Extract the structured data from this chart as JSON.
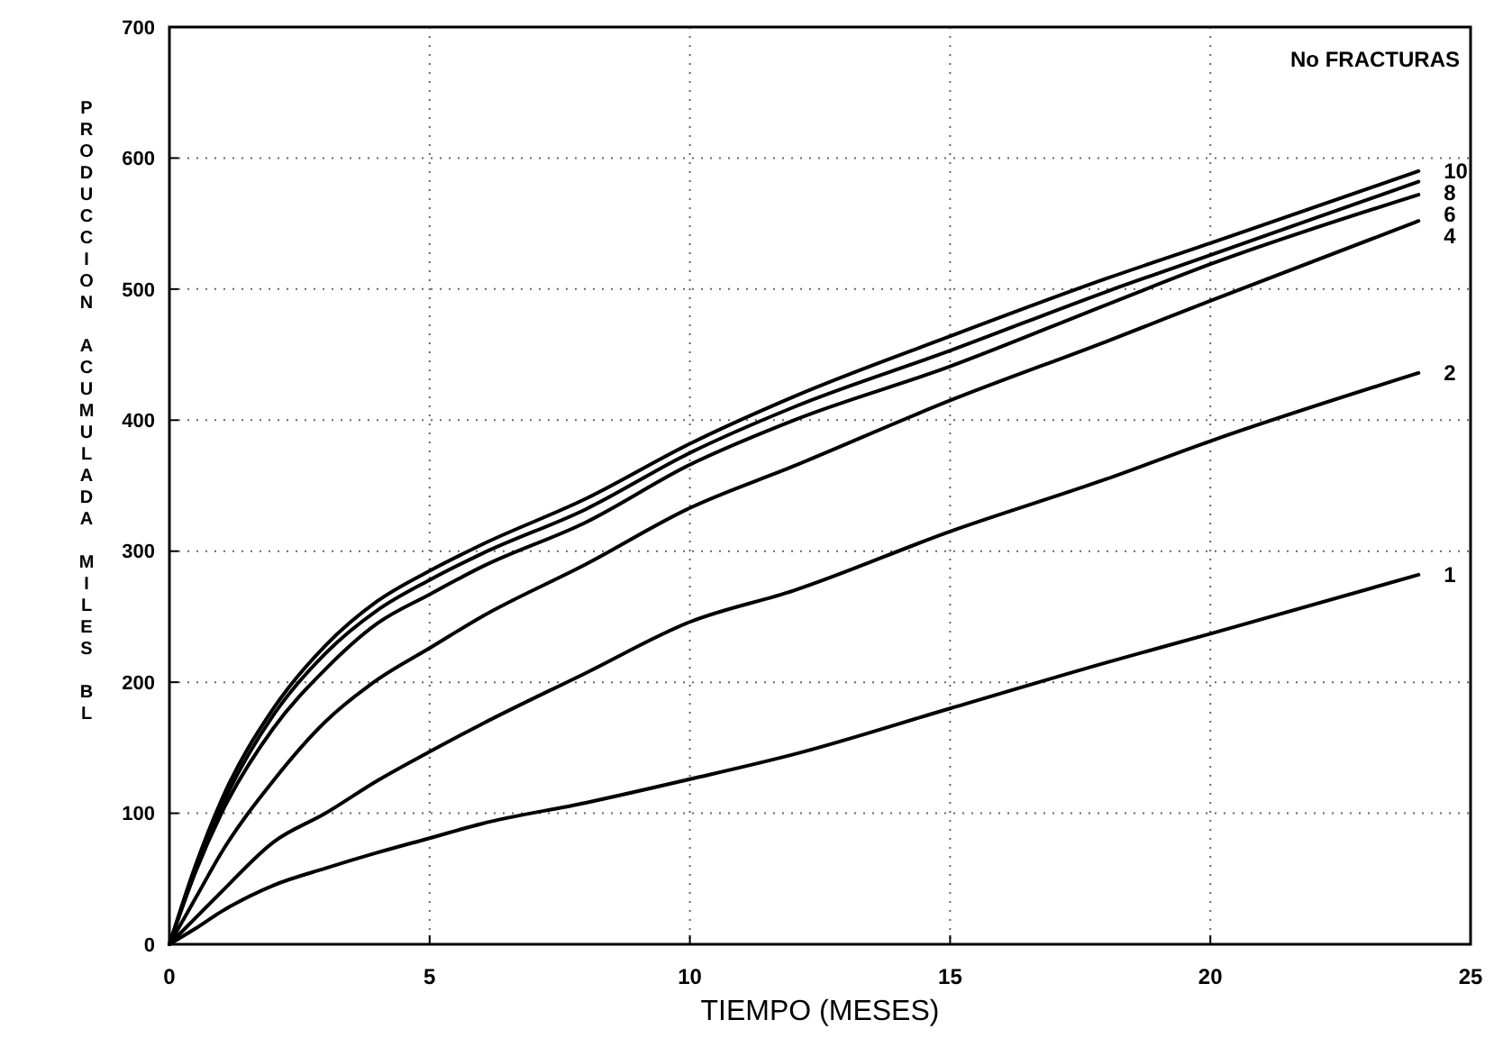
{
  "chart_data": {
    "type": "line",
    "xlabel": "TIEMPO (MESES)",
    "ylabel": "PRODUCCION ACUMULADA MILES BL",
    "legend_title": "No FRACTURAS",
    "x": [
      0,
      0.5,
      1,
      2,
      3,
      4,
      5,
      6,
      8,
      10,
      12,
      15,
      18,
      20,
      24
    ],
    "series": [
      {
        "name": "10",
        "color": "#000000",
        "values": [
          0,
          60,
          110,
          180,
          228,
          262,
          285,
          305,
          340,
          382,
          418,
          464,
          508,
          535,
          590
        ]
      },
      {
        "name": "8",
        "color": "#000000",
        "values": [
          0,
          57,
          105,
          175,
          222,
          255,
          278,
          298,
          332,
          375,
          410,
          453,
          498,
          526,
          582
        ]
      },
      {
        "name": "6",
        "color": "#000000",
        "values": [
          0,
          55,
          100,
          165,
          210,
          245,
          267,
          288,
          322,
          366,
          400,
          441,
          488,
          519,
          572
        ]
      },
      {
        "name": "4",
        "color": "#000000",
        "values": [
          0,
          35,
          70,
          125,
          170,
          202,
          226,
          250,
          290,
          333,
          365,
          415,
          460,
          491,
          552
        ]
      },
      {
        "name": "2",
        "color": "#000000",
        "values": [
          0,
          20,
          40,
          78,
          100,
          125,
          147,
          168,
          207,
          246,
          270,
          315,
          355,
          384,
          436
        ]
      },
      {
        "name": "1",
        "color": "#000000",
        "values": [
          0,
          12,
          25,
          45,
          58,
          70,
          81,
          92,
          108,
          126,
          145,
          180,
          215,
          237,
          282
        ]
      }
    ],
    "xlim": [
      0,
      25
    ],
    "ylim": [
      0,
      700
    ],
    "xticks": [
      0,
      5,
      10,
      15,
      20,
      25
    ],
    "yticks": [
      0,
      100,
      200,
      300,
      400,
      500,
      600,
      700
    ],
    "grid": true,
    "marker": "none",
    "line_style": "solid"
  }
}
